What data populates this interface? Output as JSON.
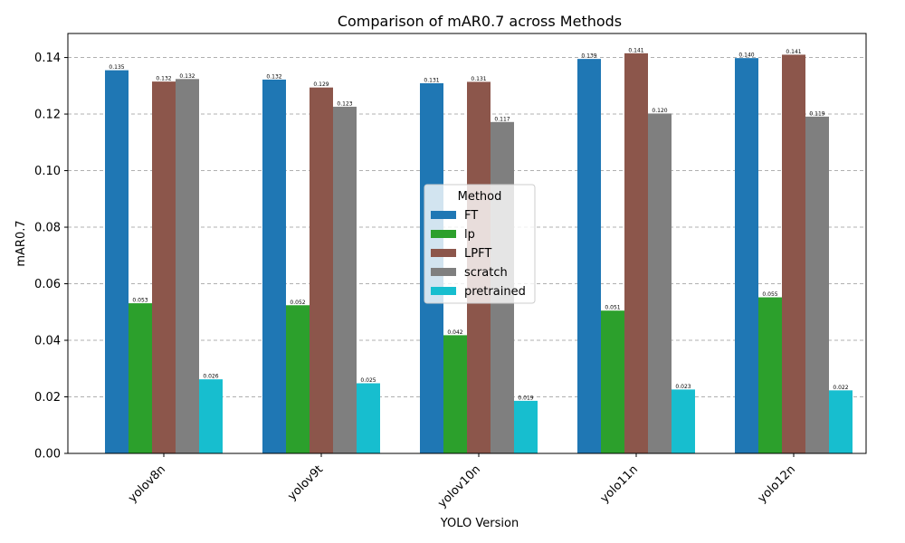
{
  "chart_data": {
    "type": "bar",
    "title": "Comparison of mAR0.7 across Methods",
    "xlabel": "YOLO Version",
    "ylabel": "mAR0.7",
    "ylim": [
      0,
      0.1485
    ],
    "yticks": [
      "0.00",
      "0.02",
      "0.04",
      "0.06",
      "0.08",
      "0.10",
      "0.12",
      "0.14"
    ],
    "grid": true,
    "categories": [
      "yolov8n",
      "yolov9t",
      "yolov10n",
      "yolo11n",
      "yolo12n"
    ],
    "legend": {
      "title": "Method",
      "placement": "center"
    },
    "series": [
      {
        "name": "FT",
        "color": "#1f77b4",
        "values": [
          0.1355,
          0.1322,
          0.1309,
          0.1395,
          0.1398
        ],
        "labels": [
          "0.135",
          "0.132",
          "0.131",
          "0.139",
          "0.140"
        ]
      },
      {
        "name": "lp",
        "color": "#2ca02c",
        "values": [
          0.0531,
          0.0524,
          0.0418,
          0.0505,
          0.0552
        ],
        "labels": [
          "0.053",
          "0.052",
          "0.042",
          "0.051",
          "0.055"
        ]
      },
      {
        "name": "LPFT",
        "color": "#8c564b",
        "values": [
          0.1315,
          0.1294,
          0.1314,
          0.1415,
          0.141
        ],
        "labels": [
          "0.132",
          "0.129",
          "0.131",
          "0.141",
          "0.141"
        ]
      },
      {
        "name": "scratch",
        "color": "#7f7f7f",
        "values": [
          0.1324,
          0.1226,
          0.1172,
          0.1202,
          0.1191
        ],
        "labels": [
          "0.132",
          "0.123",
          "0.117",
          "0.120",
          "0.119"
        ]
      },
      {
        "name": "pretrained",
        "color": "#17becf",
        "values": [
          0.0262,
          0.0248,
          0.0186,
          0.0226,
          0.0223
        ],
        "labels": [
          "0.026",
          "0.025",
          "0.019",
          "0.023",
          "0.022"
        ]
      }
    ]
  }
}
